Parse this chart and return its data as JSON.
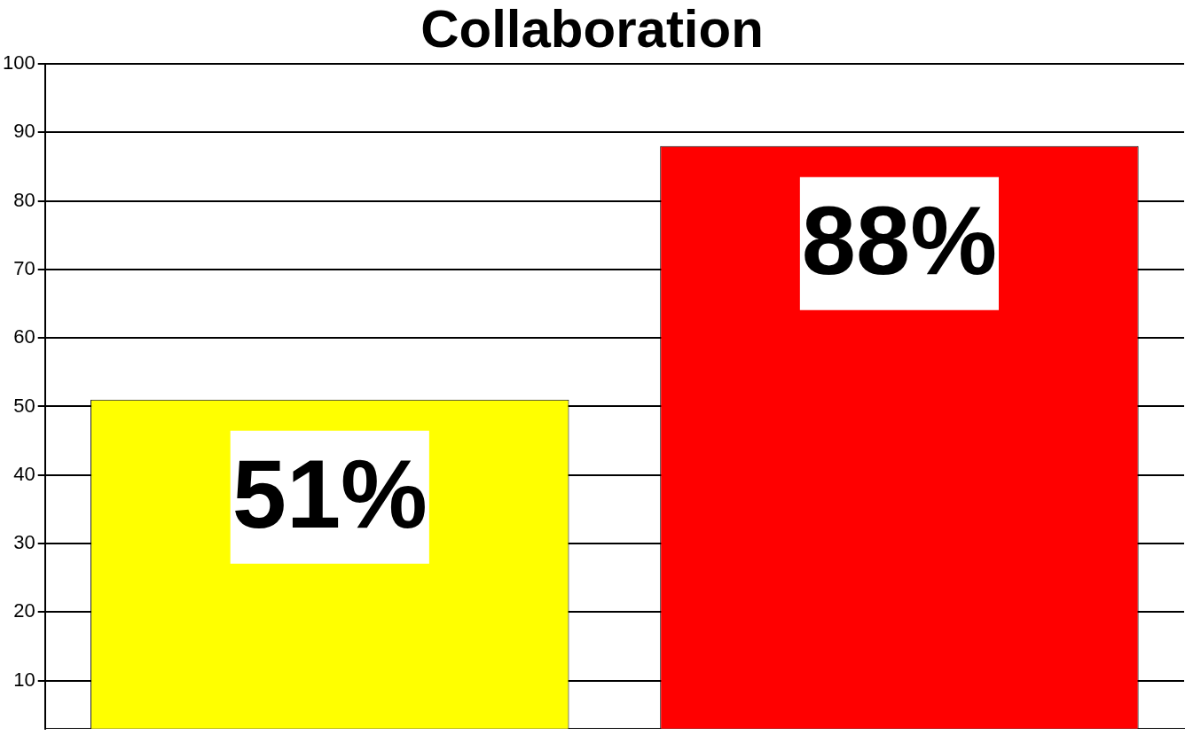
{
  "chart_data": {
    "type": "bar",
    "title": "Collaboration",
    "categories": [
      null,
      null
    ],
    "values": [
      51,
      88
    ],
    "colors": [
      "#ffff00",
      "#ff0000"
    ],
    "value_labels": [
      "51%",
      "88%"
    ],
    "ylim": [
      3,
      100
    ],
    "yticks": [
      10,
      20,
      30,
      40,
      50,
      60,
      70,
      80,
      90,
      100
    ],
    "grid": "y"
  }
}
